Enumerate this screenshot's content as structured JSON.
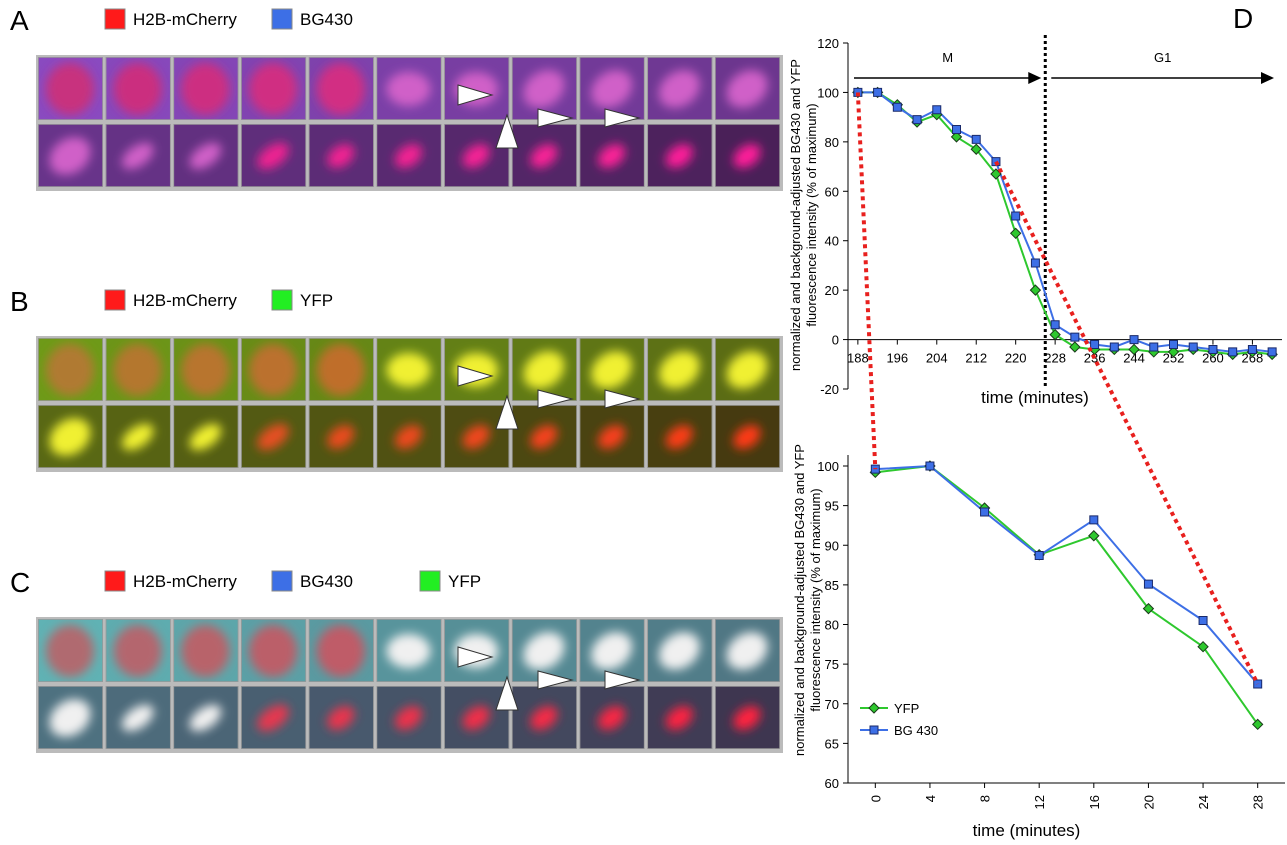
{
  "panels": [
    {
      "label": "A",
      "legend": [
        {
          "name": "H2B-mCherry",
          "color": "#ff1a1a"
        },
        {
          "name": "BG430",
          "color": "#3d6fe6"
        }
      ]
    },
    {
      "label": "B",
      "legend": [
        {
          "name": "H2B-mCherry",
          "color": "#ff1a1a"
        },
        {
          "name": "YFP",
          "color": "#22ee22"
        }
      ]
    },
    {
      "label": "C",
      "legend": [
        {
          "name": "H2B-mCherry",
          "color": "#ff1a1a"
        },
        {
          "name": "BG430",
          "color": "#3d6fe6"
        },
        {
          "name": "YFP",
          "color": "#22ee22"
        }
      ]
    }
  ],
  "chart_data": [
    {
      "type": "line",
      "panel_label": "D",
      "ylabel_lines": [
        "normalized and background-adjusted BG430 and YFP",
        "fluorescence intensity (% of maximum)"
      ],
      "xlabel": "time (minutes)",
      "x": [
        188,
        192,
        196,
        200,
        204,
        208,
        212,
        216,
        220,
        224,
        228,
        232,
        236,
        240,
        244,
        248,
        252,
        256,
        260,
        264,
        268,
        272
      ],
      "xlim": [
        186,
        274
      ],
      "xticks": [
        188,
        196,
        204,
        212,
        220,
        228,
        236,
        244,
        252,
        260,
        268
      ],
      "ylim": [
        -20,
        120
      ],
      "yticks": [
        -20,
        0,
        20,
        40,
        60,
        80,
        100,
        120
      ],
      "phases": [
        {
          "label": "M"
        },
        {
          "label": "G1"
        }
      ],
      "phase_boundary": 226,
      "series": [
        {
          "color": "#2ec82e",
          "marker": "diamond",
          "values": [
            100,
            100,
            95,
            88,
            91,
            82,
            77,
            67,
            43,
            20,
            2,
            -3,
            -4,
            -4,
            -4,
            -5,
            -5,
            -4,
            -5,
            -6,
            -5,
            -6
          ]
        },
        {
          "color": "#3d6fe6",
          "marker": "square",
          "values": [
            100,
            100,
            94,
            89,
            93,
            85,
            81,
            72,
            50,
            31,
            6,
            1,
            -2,
            -3,
            0,
            -3,
            -2,
            -3,
            -4,
            -5,
            -4,
            -5
          ]
        }
      ]
    },
    {
      "type": "line",
      "ylabel_lines": [
        "normalized and background-adjusted BG430 and YFP",
        "fluorescence intensity (% of maximum)"
      ],
      "xlabel": "time (minutes)",
      "x": [
        0,
        4,
        8,
        12,
        16,
        20,
        24,
        28
      ],
      "xlim": [
        -2,
        30
      ],
      "xticks": [
        0,
        4,
        8,
        12,
        16,
        20,
        24,
        28
      ],
      "ylim": [
        60,
        100
      ],
      "yticks": [
        60,
        65,
        70,
        75,
        80,
        85,
        90,
        95,
        100
      ],
      "legend": "lower left",
      "series": [
        {
          "name": "YFP",
          "color": "#2ec82e",
          "marker": "diamond",
          "values": [
            99.2,
            100,
            94.7,
            88.8,
            91.2,
            82,
            77.2,
            67.4
          ]
        },
        {
          "name": "BG 430",
          "color": "#3d6fe6",
          "marker": "square",
          "values": [
            99.6,
            100,
            94.2,
            88.7,
            93.2,
            85.1,
            80.5,
            72.5
          ]
        }
      ]
    }
  ]
}
